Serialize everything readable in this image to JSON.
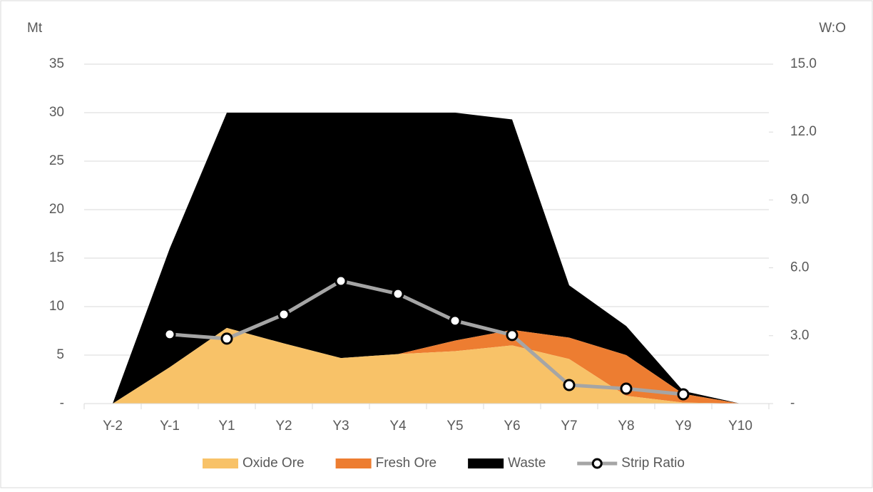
{
  "chart_data": {
    "type": "stacked-area-line",
    "y_axis_title": "Mt",
    "y2_axis_title": "W:O",
    "categories": [
      "Y-2",
      "Y-1",
      "Y1",
      "Y2",
      "Y3",
      "Y4",
      "Y5",
      "Y6",
      "Y7",
      "Y8",
      "Y9",
      "Y10"
    ],
    "ylim": [
      0,
      35
    ],
    "yticks": [
      {
        "value": 0,
        "label": "-"
      },
      5,
      10,
      15,
      20,
      25,
      30,
      35
    ],
    "y2lim": [
      0,
      15
    ],
    "y2ticks": [
      {
        "value": 0,
        "label": "-"
      },
      {
        "value": 3,
        "label": "3.0"
      },
      {
        "value": 6,
        "label": "6.0"
      },
      {
        "value": 9,
        "label": "9.0"
      },
      {
        "value": 12,
        "label": "12.0"
      },
      {
        "value": 15,
        "label": "15.0"
      }
    ],
    "grid": true,
    "legend": "bottom",
    "series": [
      {
        "name": "Oxide Ore",
        "color": "#f8c268",
        "values": [
          0,
          3.75,
          7.8,
          6.2,
          4.7,
          5.1,
          5.4,
          6.0,
          4.6,
          0.8,
          0.1,
          0
        ]
      },
      {
        "name": "Fresh Ore",
        "color": "#ed7d31",
        "values": [
          0,
          0,
          0,
          0,
          0,
          0,
          1.1,
          1.6,
          2.2,
          4.2,
          0.9,
          0
        ]
      },
      {
        "name": "Waste",
        "color": "#000000",
        "values": [
          0,
          12.25,
          22.2,
          23.8,
          25.3,
          24.9,
          23.5,
          21.7,
          5.4,
          3.0,
          0.3,
          0
        ]
      },
      {
        "name": "Strip Ratio",
        "color": "#a5a5a5",
        "axis": "y2",
        "values": [
          null,
          3.06,
          2.87,
          3.94,
          5.42,
          4.85,
          3.66,
          3.03,
          0.82,
          0.66,
          0.41,
          null
        ]
      }
    ]
  }
}
